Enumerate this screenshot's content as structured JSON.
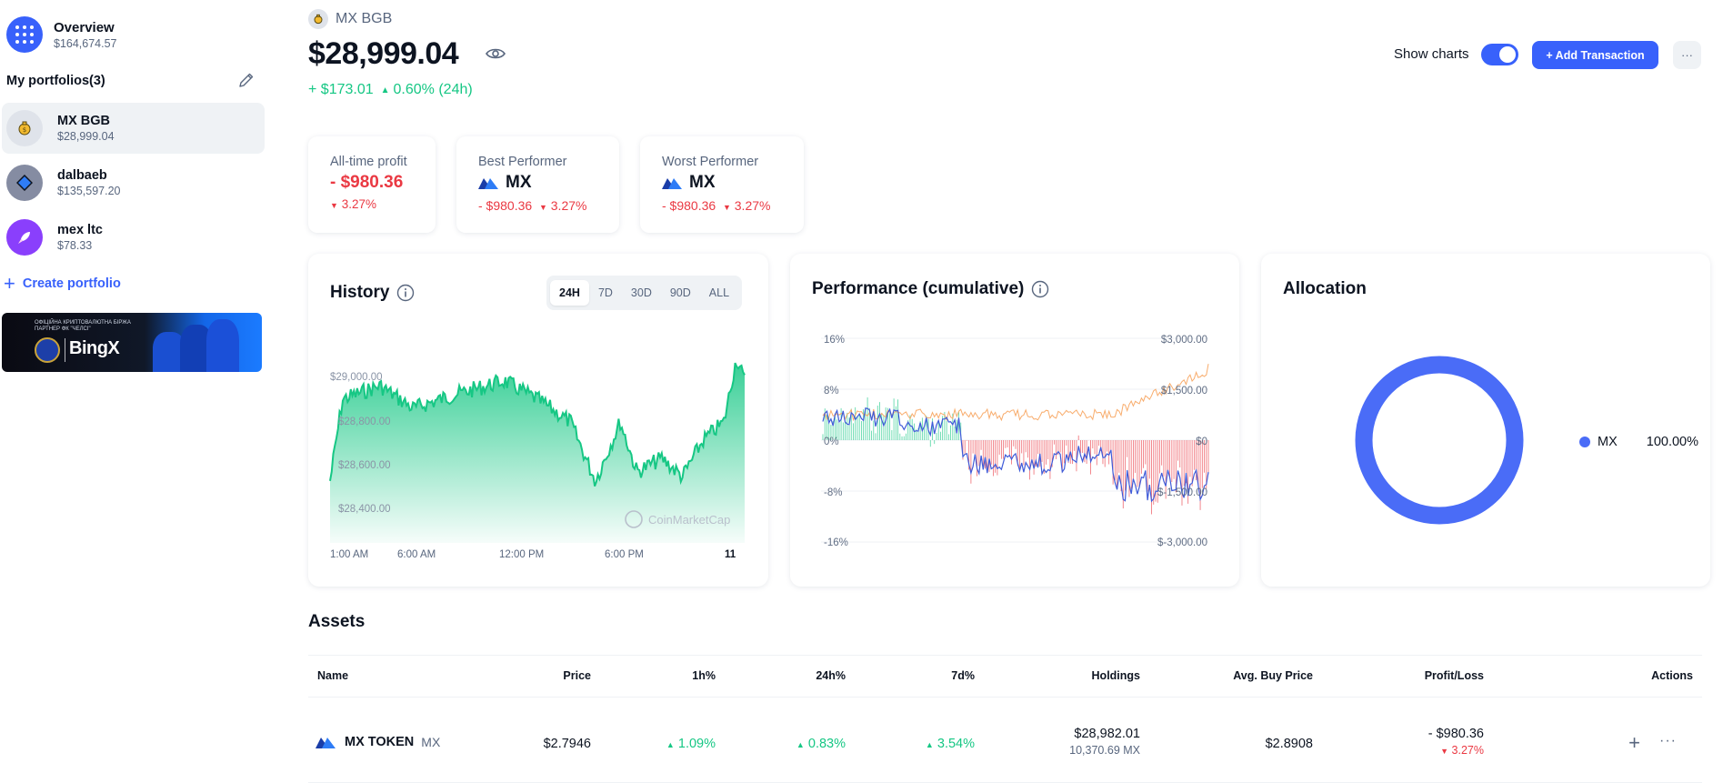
{
  "sidebar": {
    "overview": {
      "title": "Overview",
      "value": "$164,674.57",
      "icon": "grid-icon"
    },
    "my_portfolios_label": "My portfolios(3)",
    "portfolios": [
      {
        "name": "MX BGB",
        "value": "$28,999.04",
        "icon": "money-bag-icon",
        "icon_bg": "#dfe3ea",
        "active": true
      },
      {
        "name": "dalbaeb",
        "value": "$135,597.20",
        "icon": "diamond-icon",
        "icon_bg": "#858ca2",
        "active": false
      },
      {
        "name": "mex ltc",
        "value": "$78.33",
        "icon": "rocket-icon",
        "icon_bg": "#8a3ffc",
        "active": false
      }
    ],
    "create_label": "Create portfolio",
    "banner": {
      "tagline": "ОФІЦІЙНА КРИПТОВАЛЮТНА БІРЖА ПАРТНЕР ФК \"ЧЕЛСІ\"",
      "brand": "BingX"
    }
  },
  "header": {
    "portfolio_name": "MX BGB",
    "balance": "$28,999.04",
    "change_abs": "+ $173.01",
    "change_pct": "0.60% (24h)",
    "show_charts_label": "Show charts",
    "show_charts_on": true,
    "add_transaction_label": "+ Add Transaction",
    "more_label": "···"
  },
  "stats": {
    "all_time": {
      "label": "All-time profit",
      "value": "- $980.36",
      "pct": "3.27%"
    },
    "best": {
      "label": "Best Performer",
      "coin": "MX",
      "value": "- $980.36",
      "pct": "3.27%"
    },
    "worst": {
      "label": "Worst Performer",
      "coin": "MX",
      "value": "- $980.36",
      "pct": "3.27%"
    }
  },
  "history": {
    "title": "History",
    "ranges": [
      "24H",
      "7D",
      "30D",
      "90D",
      "ALL"
    ],
    "active_range": "24H",
    "x_labels": [
      "1:00 AM",
      "6:00 AM",
      "12:00 PM",
      "6:00 PM",
      "11"
    ],
    "y_labels": [
      "$29,000.00",
      "$28,800.00",
      "$28,600.00",
      "$28,400.00"
    ],
    "watermark": "CoinMarketCap"
  },
  "performance": {
    "title": "Performance (cumulative)",
    "left_axis": [
      "16%",
      "8%",
      "0%",
      "-8%",
      "-16%"
    ],
    "right_axis": [
      "$3,000.00",
      "$1,500.00",
      "$0",
      "$-1,500.00",
      "$-3,000.00"
    ]
  },
  "allocation": {
    "title": "Allocation",
    "items": [
      {
        "name": "MX",
        "pct": "100.00%",
        "color": "#4a6cf7"
      }
    ]
  },
  "assets": {
    "title": "Assets",
    "columns": [
      "Name",
      "Price",
      "1h%",
      "24h%",
      "7d%",
      "Holdings",
      "Avg. Buy Price",
      "Profit/Loss",
      "Actions"
    ],
    "rows": [
      {
        "name": "MX TOKEN",
        "symbol": "MX",
        "price": "$2.7946",
        "h1": "1.09%",
        "h24": "0.83%",
        "d7": "3.54%",
        "holdings_value": "$28,982.01",
        "holdings_amount": "10,370.69 MX",
        "avg_buy": "$2.8908",
        "pl_value": "- $980.36",
        "pl_pct": "3.27%"
      }
    ]
  },
  "colors": {
    "accent": "#3861fb",
    "up": "#16c784",
    "down": "#ea3943",
    "perf_line": "#3f5bd8",
    "perf_orange": "#f7a35c"
  }
}
